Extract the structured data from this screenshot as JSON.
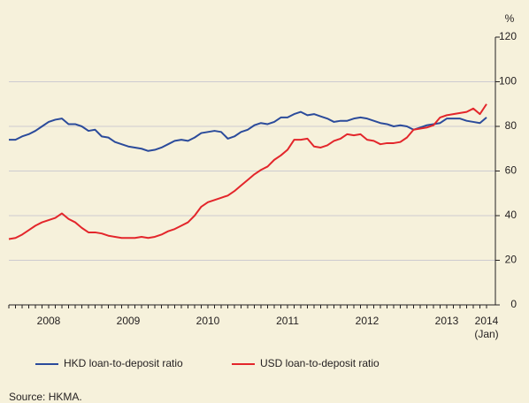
{
  "chart_data": {
    "type": "line",
    "y_unit": "%",
    "x": [
      "2008-01",
      "2008-02",
      "2008-03",
      "2008-04",
      "2008-05",
      "2008-06",
      "2008-07",
      "2008-08",
      "2008-09",
      "2008-10",
      "2008-11",
      "2008-12",
      "2009-01",
      "2009-02",
      "2009-03",
      "2009-04",
      "2009-05",
      "2009-06",
      "2009-07",
      "2009-08",
      "2009-09",
      "2009-10",
      "2009-11",
      "2009-12",
      "2010-01",
      "2010-02",
      "2010-03",
      "2010-04",
      "2010-05",
      "2010-06",
      "2010-07",
      "2010-08",
      "2010-09",
      "2010-10",
      "2010-11",
      "2010-12",
      "2011-01",
      "2011-02",
      "2011-03",
      "2011-04",
      "2011-05",
      "2011-06",
      "2011-07",
      "2011-08",
      "2011-09",
      "2011-10",
      "2011-11",
      "2011-12",
      "2012-01",
      "2012-02",
      "2012-03",
      "2012-04",
      "2012-05",
      "2012-06",
      "2012-07",
      "2012-08",
      "2012-09",
      "2012-10",
      "2012-11",
      "2012-12",
      "2013-01",
      "2013-02",
      "2013-03",
      "2013-04",
      "2013-05",
      "2013-06",
      "2013-07",
      "2013-08",
      "2013-09",
      "2013-10",
      "2013-11",
      "2013-12",
      "2014-01"
    ],
    "series": [
      {
        "name": "HKD loan-to-deposit ratio",
        "color": "#2b4b9b",
        "values": [
          74,
          74,
          75.5,
          76.5,
          78,
          80,
          82,
          83,
          83.5,
          81,
          81,
          80,
          78,
          78.5,
          75.5,
          75,
          73,
          72,
          71,
          70.5,
          70,
          69,
          69.5,
          70.5,
          72,
          73.5,
          74,
          73.5,
          75,
          77,
          77.5,
          78,
          77.5,
          74.5,
          75.5,
          77.5,
          78.5,
          80.5,
          81.5,
          81,
          82,
          84,
          84,
          85.5,
          86.5,
          85,
          85.5,
          84.5,
          83.5,
          82,
          82.5,
          82.5,
          83.5,
          84,
          83.5,
          82.5,
          81.5,
          81,
          80,
          80.5,
          80,
          78.5,
          79.5,
          80.5,
          81,
          81.5,
          83.5,
          83.5,
          83.5,
          82.5,
          82,
          81.5,
          84
        ]
      },
      {
        "name": "USD loan-to-deposit ratio",
        "color": "#e3262b",
        "values": [
          29.5,
          30,
          31.5,
          33.5,
          35.5,
          37,
          38,
          39,
          41,
          38.5,
          37,
          34.5,
          32.5,
          32.5,
          32,
          31,
          30.5,
          30,
          30,
          30,
          30.5,
          30,
          30.5,
          31.5,
          33,
          34,
          35.5,
          37,
          40,
          44,
          46,
          47,
          48,
          49,
          51,
          53.5,
          56,
          58.5,
          60.5,
          62,
          65,
          67,
          69.5,
          74,
          74,
          74.5,
          71,
          70.5,
          71.5,
          73.5,
          74.5,
          76.5,
          76,
          76.5,
          74,
          73.5,
          72,
          72.5,
          72.5,
          73,
          75,
          78.5,
          79,
          79.5,
          80.5,
          84,
          85,
          85.5,
          86,
          86.5,
          88,
          85.5,
          90
        ]
      }
    ],
    "xticks": [
      {
        "value": "2008-07",
        "label": "2008"
      },
      {
        "value": "2009-07",
        "label": "2009"
      },
      {
        "value": "2010-07",
        "label": "2010"
      },
      {
        "value": "2011-07",
        "label": "2011"
      },
      {
        "value": "2012-07",
        "label": "2012"
      },
      {
        "value": "2013-07",
        "label": "2013"
      },
      {
        "value": "2014-01",
        "label": "2014"
      }
    ],
    "x_note": "(Jan)",
    "ylim": [
      0,
      120
    ],
    "yticks": [
      0,
      20,
      40,
      60,
      80,
      100,
      120
    ],
    "grid": true,
    "source": "Source: HKMA."
  }
}
